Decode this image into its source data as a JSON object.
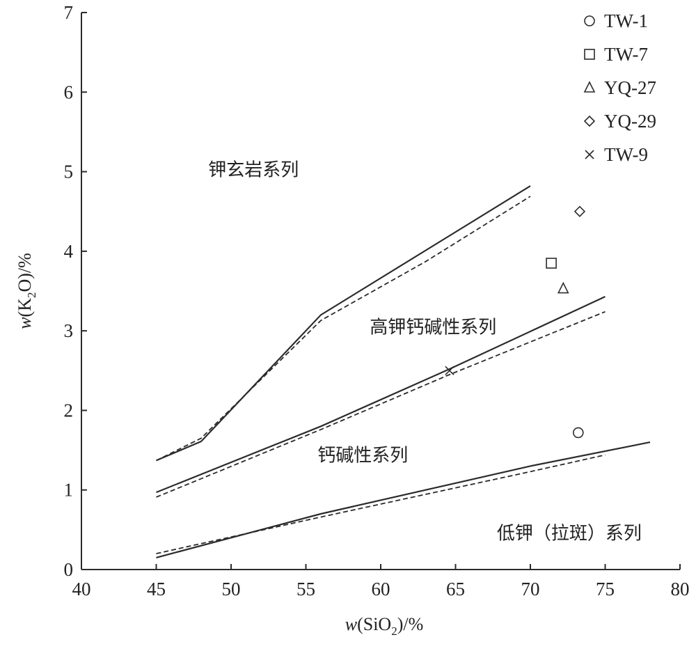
{
  "chart_data": {
    "type": "scatter",
    "xlabel": {
      "prefix": "w",
      "main": "(SiO",
      "sub": "2",
      "suffix": ")/%"
    },
    "ylabel": {
      "prefix": "w",
      "main": "(K",
      "sub": "2",
      "suffix": "O)/%"
    },
    "xlim": [
      40,
      80
    ],
    "ylim": [
      0,
      7
    ],
    "xticks": [
      40,
      45,
      50,
      55,
      60,
      65,
      70,
      75,
      80
    ],
    "yticks": [
      0,
      1,
      2,
      3,
      4,
      5,
      6,
      7
    ],
    "grid": false,
    "legend_position": "top-right",
    "series": [
      {
        "name": "TW-1",
        "marker": "circle",
        "points": [
          [
            73.2,
            1.72
          ]
        ]
      },
      {
        "name": "TW-7",
        "marker": "square",
        "points": [
          [
            71.4,
            3.85
          ]
        ]
      },
      {
        "name": "YQ-27",
        "marker": "triangle",
        "points": [
          [
            72.2,
            3.53
          ]
        ]
      },
      {
        "name": "YQ-29",
        "marker": "diamond",
        "points": [
          [
            73.3,
            4.5
          ]
        ]
      },
      {
        "name": "TW-9",
        "marker": "x",
        "points": [
          [
            64.6,
            2.5
          ]
        ]
      }
    ],
    "boundaries": [
      {
        "style": "solid",
        "points": [
          [
            45,
            1.37
          ],
          [
            48,
            1.61
          ],
          [
            56,
            3.2
          ],
          [
            70,
            4.82
          ]
        ]
      },
      {
        "style": "dashed",
        "points": [
          [
            45,
            1.37
          ],
          [
            48,
            1.65
          ],
          [
            56,
            3.13
          ],
          [
            63,
            3.87
          ],
          [
            70,
            4.69
          ]
        ]
      },
      {
        "style": "solid",
        "points": [
          [
            45,
            0.97
          ],
          [
            56,
            1.8
          ],
          [
            64.6,
            2.52
          ],
          [
            75,
            3.43
          ]
        ]
      },
      {
        "style": "dashed",
        "points": [
          [
            45,
            0.91
          ],
          [
            56,
            1.76
          ],
          [
            64.6,
            2.45
          ],
          [
            75,
            3.24
          ]
        ]
      },
      {
        "style": "solid",
        "points": [
          [
            45,
            0.15
          ],
          [
            56,
            0.7
          ],
          [
            70,
            1.3
          ],
          [
            78,
            1.6
          ]
        ]
      },
      {
        "style": "dashed",
        "points": [
          [
            45,
            0.2
          ],
          [
            56,
            0.66
          ],
          [
            70,
            1.23
          ],
          [
            75,
            1.44
          ]
        ]
      }
    ],
    "field_labels": [
      {
        "text": "钾玄岩系列",
        "x": 51.5,
        "y": 4.95
      },
      {
        "text": "高钾钙碱性系列",
        "x": 63.5,
        "y": 2.97
      },
      {
        "text": "钙碱性系列",
        "x": 58.8,
        "y": 1.36
      },
      {
        "text": "低钾（拉斑）系列",
        "x": 72.6,
        "y": 0.38
      }
    ]
  }
}
